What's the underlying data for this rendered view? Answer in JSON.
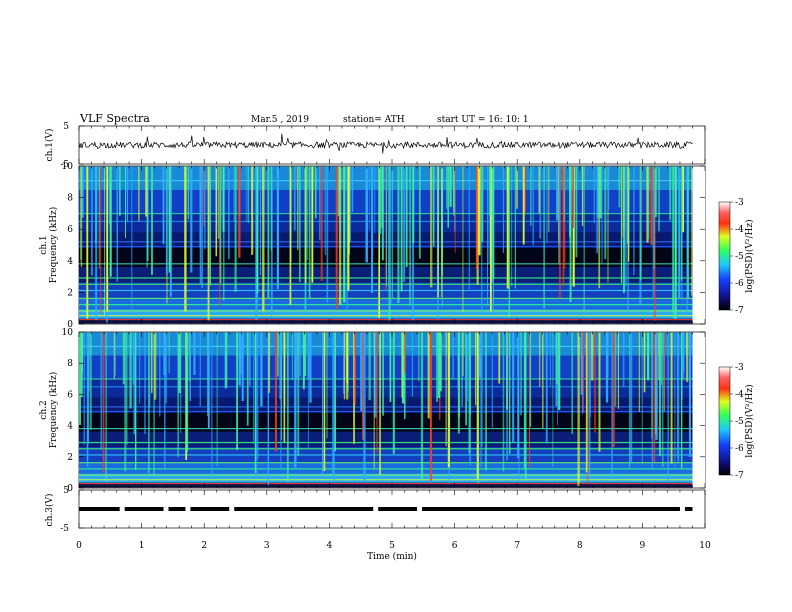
{
  "header": {
    "title": "VLF  Spectra",
    "date": "Mar.5  , 2019",
    "station": "station= ATH",
    "start": "start  UT  =    16: 10: 1"
  },
  "colorbar": {
    "label": "log(PSD)(V²/Hz)",
    "ticks": [
      "-3",
      "-4",
      "-5",
      "-6",
      "-7"
    ]
  },
  "chart_data": [
    {
      "type": "line",
      "panel": "ch.1 waveform",
      "ylabel": "ch.1(V)",
      "ylim": [
        -5,
        5
      ],
      "yticks": [
        "5",
        "-5"
      ],
      "xlim": [
        0,
        10
      ],
      "approx_level": 0,
      "approx_noise_amplitude": 1
    },
    {
      "type": "heatmap",
      "panel": "ch.1 spectrogram",
      "ylabel": "ch.1\nFrequency  (kHz)",
      "ylim": [
        0,
        10
      ],
      "yticks": [
        "0",
        "2",
        "4",
        "6",
        "8",
        "10"
      ],
      "xlim": [
        0,
        10
      ],
      "data_end_min": 9.8,
      "zlabel": "log(PSD)(V²/Hz)",
      "zlim": [
        -7,
        -3
      ]
    },
    {
      "type": "heatmap",
      "panel": "ch.2 spectrogram",
      "ylabel": "ch.2\nFrequency  (kHz)",
      "ylim": [
        0,
        10
      ],
      "yticks": [
        "0",
        "2",
        "4",
        "6",
        "8",
        "10"
      ],
      "xlim": [
        0,
        10
      ],
      "data_end_min": 9.8,
      "zlabel": "log(PSD)(V²/Hz)",
      "zlim": [
        -7,
        -3
      ]
    },
    {
      "type": "line",
      "panel": "ch.3 signal",
      "ylabel": "ch.3(V)",
      "ylim": [
        -5,
        5
      ],
      "yticks": [
        "5",
        "-5"
      ],
      "xlabel": "Time  (min)",
      "xlim": [
        0,
        10
      ],
      "xticks": [
        "0",
        "1",
        "2",
        "3",
        "4",
        "5",
        "6",
        "7",
        "8",
        "9",
        "10"
      ],
      "approx_level": 0,
      "gap_times_min": [
        0.65,
        1.35,
        1.7,
        2.4,
        4.7,
        5.4,
        9.6
      ]
    }
  ],
  "colors": {
    "spectrogram_scale": [
      "#000000",
      "#1020a0",
      "#1060ff",
      "#20c0ff",
      "#40ff80",
      "#ffff20",
      "#ff2020",
      "#ffffff"
    ]
  }
}
